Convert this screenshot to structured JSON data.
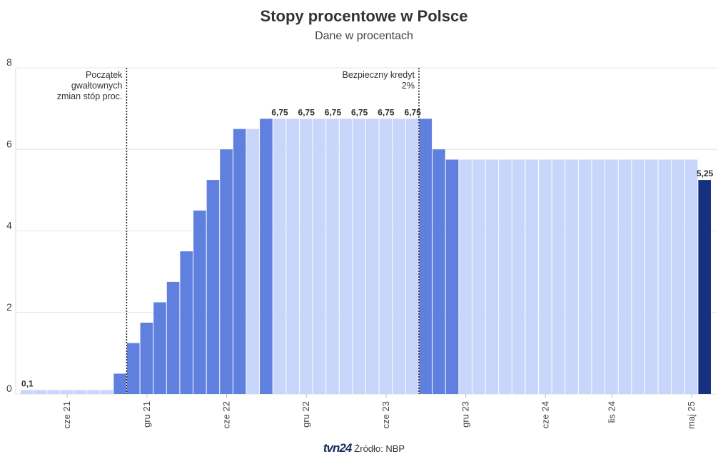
{
  "chart_data": {
    "type": "bar",
    "title": "Stopy procentowe w Polsce",
    "subtitle": "Dane w procentach",
    "xlabel": "",
    "ylabel": "",
    "ylim": [
      0,
      8
    ],
    "yticks": [
      0,
      2,
      4,
      6,
      8
    ],
    "grid": true,
    "x_tick_labels": [
      "cze 21",
      "gru 21",
      "cze 22",
      "gru 22",
      "cze 23",
      "gru 23",
      "cze 24",
      "lis 24",
      "maj 25"
    ],
    "values": [
      0.1,
      0.1,
      0.1,
      0.1,
      0.1,
      0.1,
      0.1,
      0.5,
      1.25,
      1.75,
      2.25,
      2.75,
      3.5,
      4.5,
      5.25,
      6.0,
      6.5,
      6.5,
      6.75,
      6.75,
      6.75,
      6.75,
      6.75,
      6.75,
      6.75,
      6.75,
      6.75,
      6.75,
      6.75,
      6.75,
      6.75,
      6.0,
      5.75,
      5.75,
      5.75,
      5.75,
      5.75,
      5.75,
      5.75,
      5.75,
      5.75,
      5.75,
      5.75,
      5.75,
      5.75,
      5.75,
      5.75,
      5.75,
      5.75,
      5.75,
      5.75,
      5.25
    ],
    "bar_color_class": [
      "light",
      "light",
      "light",
      "light",
      "light",
      "light",
      "light",
      "mid",
      "mid",
      "mid",
      "mid",
      "mid",
      "mid",
      "mid",
      "mid",
      "mid",
      "mid",
      "light",
      "mid",
      "light",
      "light",
      "light",
      "light",
      "light",
      "light",
      "light",
      "light",
      "light",
      "light",
      "light",
      "mid",
      "mid",
      "mid",
      "light",
      "light",
      "light",
      "light",
      "light",
      "light",
      "light",
      "light",
      "light",
      "light",
      "light",
      "light",
      "light",
      "light",
      "light",
      "light",
      "light",
      "light",
      "dark"
    ],
    "data_labels": [
      {
        "index": 0,
        "text": "0,1"
      },
      {
        "index": 19,
        "text": "6,75"
      },
      {
        "index": 21,
        "text": "6,75"
      },
      {
        "index": 23,
        "text": "6,75"
      },
      {
        "index": 25,
        "text": "6,75"
      },
      {
        "index": 27,
        "text": "6,75"
      },
      {
        "index": 29,
        "text": "6,75"
      },
      {
        "index": 51,
        "text": "5,25"
      }
    ],
    "annotations": [
      {
        "after_index": 7,
        "lines": [
          "Początek",
          "gwałtownych",
          "zmian stóp proc."
        ]
      },
      {
        "after_index": 29,
        "lines": [
          "Bezpieczny kredyt",
          "2%"
        ]
      }
    ],
    "colors": {
      "light": "#c9d6fb",
      "mid": "#6080df",
      "dark": "#17307f",
      "grid": "#e6e6e6",
      "text": "#444444"
    }
  },
  "footer": {
    "logo": "tvn24",
    "source": "Źródło: NBP"
  }
}
